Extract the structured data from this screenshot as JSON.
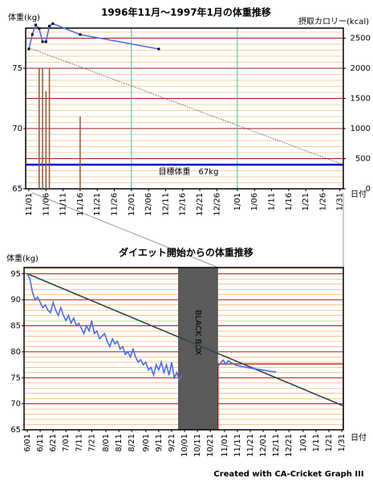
{
  "chart_data": [
    {
      "type": "line",
      "title": "1996年11月～1997年1月の体重推移",
      "y_label": "体重(kg)",
      "y2_label": "摂取カロリー(kcal)",
      "x_label": "日付",
      "xlim": [
        -0.94,
        92
      ],
      "ylim": [
        65,
        78.33
      ],
      "y2lim": [
        0,
        2667
      ],
      "xticks": [
        {
          "value": 0,
          "label": "11/01"
        },
        {
          "value": 5,
          "label": "11/06"
        },
        {
          "value": 10,
          "label": "11/11"
        },
        {
          "value": 15,
          "label": "11/16"
        },
        {
          "value": 20,
          "label": "11/21"
        },
        {
          "value": 25,
          "label": "11/26"
        },
        {
          "value": 30,
          "label": "12/01"
        },
        {
          "value": 35,
          "label": "12/06"
        },
        {
          "value": 40,
          "label": "12/11"
        },
        {
          "value": 45,
          "label": "12/16"
        },
        {
          "value": 50,
          "label": "12/21"
        },
        {
          "value": 55,
          "label": "12/26"
        },
        {
          "value": 61,
          "label": "1/01"
        },
        {
          "value": 66,
          "label": "1/06"
        },
        {
          "value": 71,
          "label": "1/11"
        },
        {
          "value": 76,
          "label": "1/16"
        },
        {
          "value": 81,
          "label": "1/21"
        },
        {
          "value": 86,
          "label": "1/26"
        },
        {
          "value": 91,
          "label": "1/31"
        }
      ],
      "yticks": [
        65,
        70,
        75
      ],
      "y2ticks": [
        0,
        500,
        1000,
        1500,
        2000,
        2500
      ],
      "grid_axis": "y2",
      "month_lines": true,
      "series": [
        {
          "type": "bar",
          "axis": "y2",
          "color": "#8b5a3c",
          "x": [
            3,
            4,
            5,
            6,
            15
          ],
          "values": [
            2000,
            2000,
            1620,
            2000,
            1200
          ]
        },
        {
          "type": "line",
          "style": "dotted",
          "color": "#444444",
          "x": [
            0,
            92
          ],
          "values": [
            76.7,
            67
          ]
        },
        {
          "type": "line",
          "markers": true,
          "color": "#4a6ee0",
          "x": [
            0,
            1,
            2,
            3,
            4,
            5,
            6,
            7,
            15,
            38
          ],
          "values": [
            76.6,
            77.8,
            78.6,
            78.3,
            77.2,
            77.2,
            78.5,
            78.7,
            77.8,
            76.6
          ]
        }
      ],
      "target": {
        "label": "目標体重　67kg",
        "value": 67,
        "color": "#0000cc"
      }
    },
    {
      "type": "line",
      "title": "ダイエット開始からの体重推移",
      "y_label": "体重(kg)",
      "x_label": "日付",
      "xlim": [
        -2.5,
        245.2
      ],
      "ylim": [
        65,
        96.2
      ],
      "xticks": [
        {
          "value": 0,
          "label": "6/01"
        },
        {
          "value": 10,
          "label": "6/11"
        },
        {
          "value": 20,
          "label": "6/21"
        },
        {
          "value": 30,
          "label": "7/01"
        },
        {
          "value": 40,
          "label": "7/11"
        },
        {
          "value": 50,
          "label": "7/21"
        },
        {
          "value": 61,
          "label": "8/01"
        },
        {
          "value": 71,
          "label": "8/11"
        },
        {
          "value": 81,
          "label": "8/21"
        },
        {
          "value": 92,
          "label": "9/01"
        },
        {
          "value": 102,
          "label": "9/11"
        },
        {
          "value": 112,
          "label": "9/21"
        },
        {
          "value": 122,
          "label": "10/01"
        },
        {
          "value": 132,
          "label": "10/11"
        },
        {
          "value": 142,
          "label": "10/21"
        },
        {
          "value": 153,
          "label": "11/01"
        },
        {
          "value": 163,
          "label": "11/11"
        },
        {
          "value": 173,
          "label": "11/21"
        },
        {
          "value": 183,
          "label": "12/01"
        },
        {
          "value": 193,
          "label": "12/11"
        },
        {
          "value": 203,
          "label": "12/21"
        },
        {
          "value": 214,
          "label": "1/01"
        },
        {
          "value": 224,
          "label": "1/11"
        },
        {
          "value": 234,
          "label": "1/21"
        },
        {
          "value": 244,
          "label": "1/31"
        }
      ],
      "yticks": [
        65,
        70,
        75,
        80,
        85,
        90,
        95
      ],
      "grid_axis": "y",
      "series": [
        {
          "type": "line",
          "color": "#2a4a4a",
          "x": [
            0,
            245.2
          ],
          "values": [
            95,
            69.6
          ]
        },
        {
          "type": "line",
          "color": "#4a6ee0",
          "x": [
            0,
            2,
            4,
            6,
            8,
            10,
            12,
            14,
            16,
            18,
            20,
            22,
            24,
            26,
            28,
            30,
            32,
            34,
            36,
            38,
            40,
            42,
            44,
            46,
            48,
            50,
            52,
            54,
            56,
            58,
            60,
            62,
            64,
            66,
            68,
            70,
            72,
            74,
            76,
            78,
            80,
            82,
            84,
            86,
            88,
            90,
            92,
            94,
            96,
            98,
            100,
            102,
            104,
            106,
            108,
            110,
            112,
            114,
            116,
            118,
            120,
            134,
            148,
            150,
            152,
            154,
            156,
            158,
            162,
            170,
            180,
            190,
            193
          ],
          "values": [
            95,
            94,
            91.5,
            90,
            90.5,
            89.5,
            88.5,
            89,
            88,
            87.5,
            89.5,
            88,
            87,
            88.5,
            87,
            86,
            87,
            85.5,
            86.5,
            85,
            85.5,
            84.5,
            83.5,
            85,
            84,
            86,
            83.5,
            84,
            82.5,
            83,
            83.5,
            82,
            81,
            82.5,
            81.5,
            82,
            80.5,
            81,
            79.5,
            80,
            79,
            80.5,
            79,
            78,
            78.5,
            77.5,
            78,
            76.5,
            77,
            75.5,
            77.5,
            76.5,
            78,
            76,
            77.5,
            75.5,
            78,
            75,
            76,
            74.5,
            75.5,
            null,
            77.2,
            77.8,
            78.4,
            77.6,
            78.3,
            77.9,
            77.4,
            77,
            76.6,
            76.2,
            76.1
          ]
        }
      ],
      "black_box": {
        "label": "BLACK BOX",
        "x": [
          117,
          148
        ],
        "color": "#5a5a5a"
      }
    }
  ],
  "footer": "Created with CA-Cricket Graph III"
}
